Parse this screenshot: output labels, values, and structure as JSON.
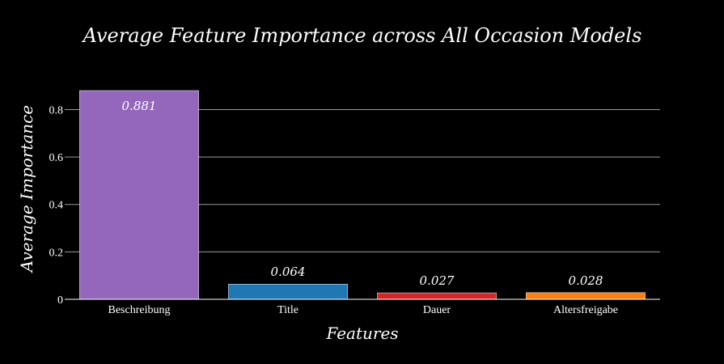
{
  "chart_data": {
    "type": "bar",
    "title": "Average Feature Importance across All Occasion Models",
    "xlabel": "Features",
    "ylabel": "Average Importance",
    "categories": [
      "Beschreibung",
      "Title",
      "Dauer",
      "Altersfreigabe"
    ],
    "values": [
      0.881,
      0.064,
      0.027,
      0.028
    ],
    "value_labels": [
      "0.881",
      "0.064",
      "0.027",
      "0.028"
    ],
    "colors": [
      "#9467bd",
      "#1f77b4",
      "#d62728",
      "#ff7f0e"
    ],
    "ylim": [
      0,
      0.88
    ],
    "yticks": [
      0,
      0.2,
      0.4,
      0.6,
      0.8
    ],
    "ytick_labels": [
      "0",
      "0.2",
      "0.4",
      "0.6",
      "0.8"
    ],
    "grid": true,
    "legend": "none",
    "background": "#000000"
  }
}
